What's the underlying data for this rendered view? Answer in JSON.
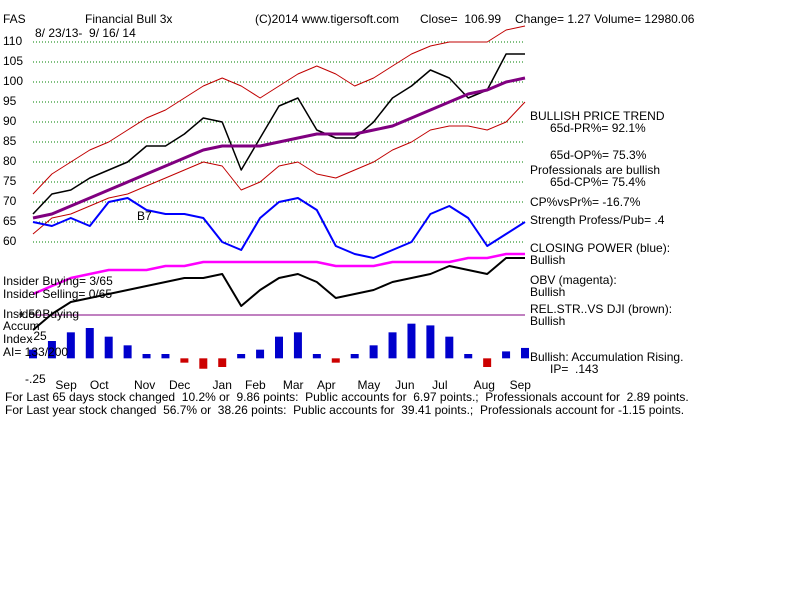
{
  "chart_data": {
    "type": "line",
    "title": "Financial Bull 3x",
    "annotations": [
      "FAS",
      "(C)2014 www.tigersoft.com",
      "Close=  106.99",
      "Change= 1.27 Volume= 12980.06",
      "8/ 23/13-  9/ 16/ 14",
      "B7",
      "BULLISH PRICE TREND",
      "65d-PR%= 92.1%",
      "65d-OP%= 75.3%",
      "Professionals are bullish",
      "65d-CP%= 75.4%",
      "CP%vsPr%= -16.7%",
      "Strength Profess/Pub= .4",
      "CLOSING POWER (blue):",
      "Bullish",
      "OBV (magenta):",
      "Bullish",
      "REL.STR..VS DJI (brown):",
      "Bullish",
      "Bullish: Accumulation Rising.",
      "IP=  .143",
      "Insider Buying= 3/65",
      "Insider Selling= 0/65",
      "Insider Buying",
      "Accum",
      "Index",
      "AI= 133/200",
      "For Last 65 days stock changed  10.2% or  9.86 points:  Public accounts for  6.97 points.;  Professionals account for  2.89 points.",
      "For Last year stock changed  56.7% or  38.26 points:  Public accounts for  39.41 points.;  Professionals account for -1.15 points."
    ],
    "x": [
      0,
      2,
      4,
      6,
      8,
      10,
      12,
      14,
      16,
      18,
      20,
      22,
      24,
      26,
      28,
      30,
      32,
      34,
      36,
      38,
      40,
      42,
      44,
      46,
      48,
      50,
      52
    ],
    "xlim": [
      0,
      52
    ],
    "xticks": [
      {
        "value": 3.5,
        "label": "Sep"
      },
      {
        "value": 7,
        "label": "Oct"
      },
      {
        "value": 11.8,
        "label": "Nov"
      },
      {
        "value": 15.5,
        "label": "Dec"
      },
      {
        "value": 20,
        "label": "Jan"
      },
      {
        "value": 23.5,
        "label": "Feb"
      },
      {
        "value": 27.5,
        "label": "Mar"
      },
      {
        "value": 31,
        "label": "Apr"
      },
      {
        "value": 35.5,
        "label": "May"
      },
      {
        "value": 39.3,
        "label": "Jun"
      },
      {
        "value": 43,
        "label": "Jul"
      },
      {
        "value": 47.7,
        "label": "Aug"
      },
      {
        "value": 51.5,
        "label": "Sep"
      }
    ],
    "ylim": [
      30,
      115
    ],
    "yticks": [
      60,
      65,
      70,
      75,
      80,
      85,
      90,
      95,
      100,
      105,
      110
    ],
    "y2lim": [
      -0.25,
      0.5
    ],
    "y2ticks": [
      {
        "value": 0.5,
        "label": "+.50"
      },
      {
        "value": 0.25,
        "label": ".25"
      },
      {
        "value": -0.25,
        "label": "-.25"
      }
    ],
    "grid": true,
    "series": [
      {
        "color": "#000000",
        "width": 1.5,
        "values": [
          67,
          72,
          73,
          76,
          78,
          80,
          84,
          84,
          87,
          91,
          90,
          78,
          86,
          94,
          96,
          88,
          86,
          86,
          90,
          96,
          99,
          103,
          101,
          96,
          98,
          107,
          107
        ]
      },
      {
        "color": "#800080",
        "width": 3,
        "values": [
          66,
          67,
          69,
          71,
          73,
          75,
          77,
          79,
          81,
          83,
          84,
          84,
          84,
          85,
          86,
          87,
          87,
          87,
          88,
          89,
          91,
          93,
          95,
          97,
          98,
          100,
          101
        ]
      },
      {
        "color": "#c00000",
        "width": 1,
        "values": [
          72,
          77,
          80,
          83,
          85,
          88,
          91,
          93,
          96,
          99,
          101,
          99,
          96,
          99,
          102,
          104,
          102,
          99,
          101,
          104,
          107,
          109,
          110,
          110,
          110,
          113,
          114
        ]
      },
      {
        "color": "#c00000",
        "width": 1,
        "values": [
          62,
          66,
          67,
          69,
          71,
          72,
          74,
          76,
          78,
          80,
          79,
          73,
          75,
          79,
          80,
          77,
          76,
          78,
          80,
          83,
          85,
          88,
          89,
          89,
          88,
          90,
          95
        ]
      },
      {
        "color": "#0000ff",
        "width": 2,
        "values": [
          65,
          64,
          66,
          64,
          70,
          71,
          68,
          67,
          67,
          66,
          60,
          58,
          66,
          70,
          71,
          68,
          59,
          57,
          56,
          58,
          60,
          67,
          69,
          66,
          59,
          62,
          65
        ]
      },
      {
        "color": "#ff00ff",
        "width": 2.5,
        "values": [
          47,
          49,
          51,
          52,
          53,
          53,
          53,
          54,
          54,
          55,
          55,
          55,
          55,
          55,
          55,
          55,
          54,
          54,
          54,
          55,
          55,
          55,
          55,
          56,
          56,
          57,
          57
        ]
      },
      {
        "color": "#000000",
        "width": 2,
        "values": [
          38,
          42,
          45,
          46,
          47,
          48,
          49,
          50,
          51,
          51,
          52,
          44,
          48,
          51,
          52,
          50,
          46,
          47,
          48,
          50,
          51,
          52,
          54,
          53,
          52,
          56,
          56
        ]
      },
      {
        "type": "bar",
        "axis": "y2",
        "color": "#0000cc",
        "negative_color": "#cc0000",
        "values": [
          0.1,
          0.2,
          0.3,
          0.35,
          0.25,
          0.15,
          0.05,
          0.05,
          -0.05,
          -0.12,
          -0.1,
          0.05,
          0.1,
          0.25,
          0.3,
          0.05,
          -0.05,
          0.05,
          0.15,
          0.3,
          0.4,
          0.38,
          0.25,
          0.05,
          -0.1,
          0.08,
          0.12
        ]
      }
    ]
  }
}
